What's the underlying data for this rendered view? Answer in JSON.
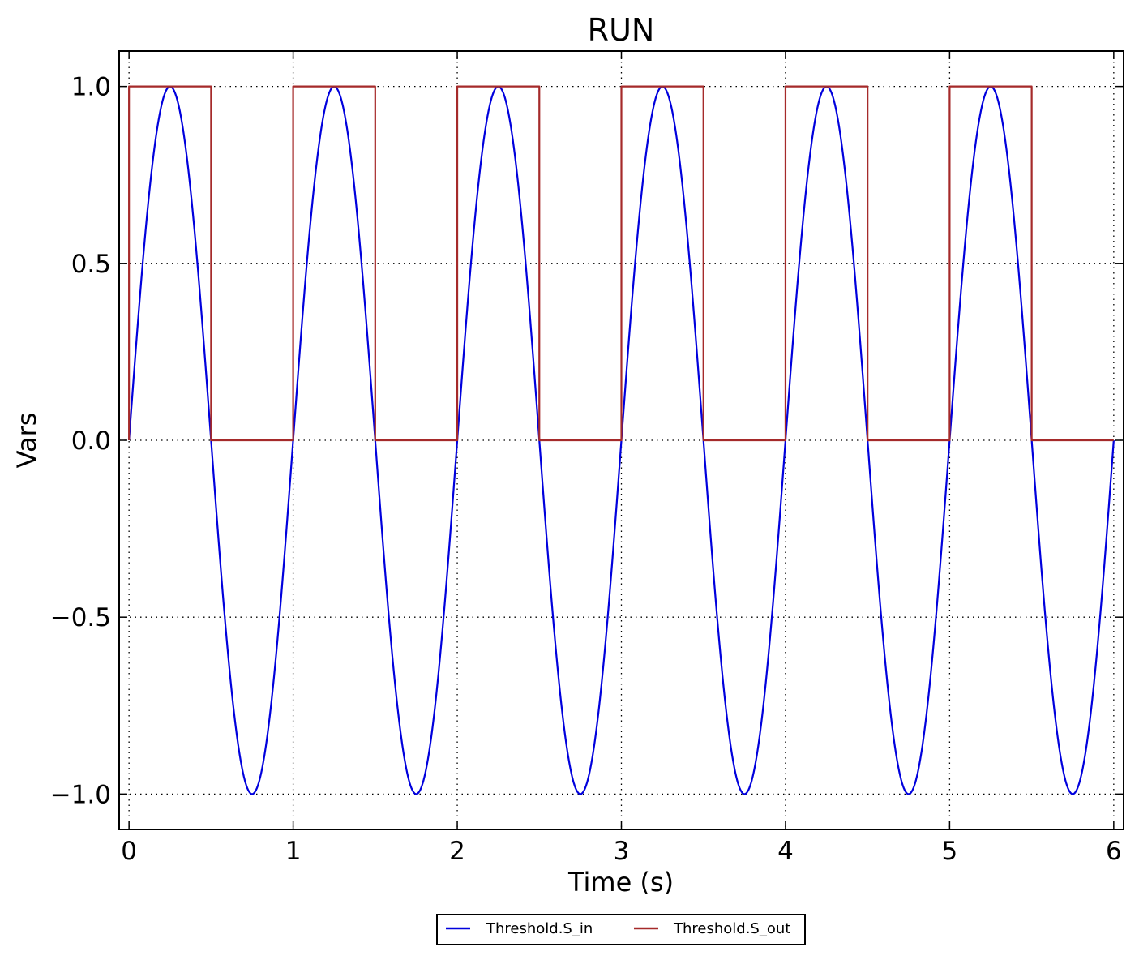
{
  "chart_data": {
    "type": "line",
    "title": "RUN",
    "xlabel": "Time (s)",
    "ylabel": "Vars",
    "xlim": [
      -0.06,
      6.06
    ],
    "ylim": [
      -1.1,
      1.1
    ],
    "x_ticks": [
      0,
      1,
      2,
      3,
      4,
      5,
      6
    ],
    "x_tick_labels": [
      "0",
      "1",
      "2",
      "3",
      "4",
      "5",
      "6"
    ],
    "y_ticks": [
      -1.0,
      -0.5,
      0.0,
      0.5,
      1.0
    ],
    "y_tick_labels": [
      "−1.0",
      "−0.5",
      "0.0",
      "0.5",
      "1.0"
    ],
    "grid": true,
    "legend_position": "bottom-center",
    "series": [
      {
        "name": "Threshold.S_in",
        "color": "#0000dd",
        "shape": "sine",
        "frequency_hz": 1,
        "amplitude": 1,
        "x_range": [
          0,
          6
        ],
        "samples": 1200
      },
      {
        "name": "Threshold.S_out",
        "color": "#a52a2a",
        "shape": "step",
        "x": [
          0,
          0,
          0.5,
          0.5,
          1,
          1,
          1.5,
          1.5,
          2,
          2,
          2.5,
          2.5,
          3,
          3,
          3.5,
          3.5,
          4,
          4,
          4.5,
          4.5,
          5,
          5,
          5.5,
          5.5,
          6
        ],
        "y": [
          0,
          1,
          1,
          0,
          0,
          1,
          1,
          0,
          0,
          1,
          1,
          0,
          0,
          1,
          1,
          0,
          0,
          1,
          1,
          0,
          0,
          1,
          1,
          0,
          0
        ]
      }
    ]
  }
}
